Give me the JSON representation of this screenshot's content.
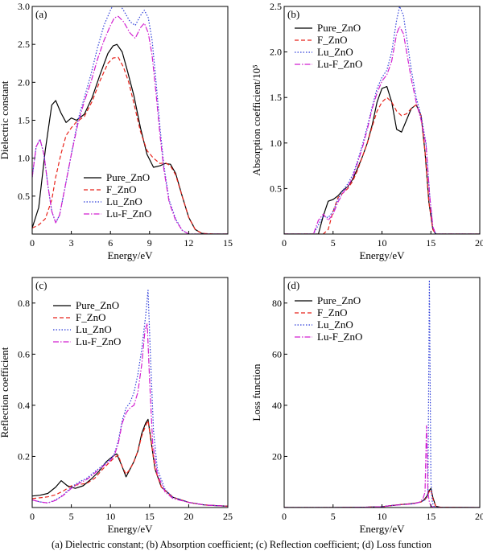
{
  "caption": "(a) Dielectric constant; (b) Absorption coefficient; (c) Reflection coefficient; (d) Loss function",
  "styles": {
    "Pure_ZnO": {
      "color": "#000000",
      "dash": ""
    },
    "F_ZnO": {
      "color": "#e8231b",
      "dash": "5,3"
    },
    "Lu_ZnO": {
      "color": "#2f3fd9",
      "dash": "1.5,2"
    },
    "Lu-F_ZnO": {
      "color": "#d21fd0",
      "dash": "7,2,1.5,2"
    }
  },
  "chart_data": [
    {
      "type": "line",
      "panel_label": "(a)",
      "xlabel": "Energy/eV",
      "ylabel": "Dielectric constant",
      "xlim": [
        0,
        15
      ],
      "ylim": [
        0,
        3.0
      ],
      "xticks": [
        0,
        3,
        6,
        9,
        12,
        15
      ],
      "yticks": [
        0.5,
        1.0,
        1.5,
        2.0,
        2.5,
        3.0
      ],
      "ytick_labels": [
        "0.5",
        "1.0",
        "1.5",
        "2.0",
        "2.5",
        "3.0"
      ],
      "legend": "lower-left",
      "series": [
        {
          "name": "Pure_ZnO",
          "x": [
            0,
            0.5,
            1.0,
            1.5,
            1.8,
            2.2,
            2.6,
            3.0,
            3.4,
            4.0,
            4.6,
            5.2,
            5.8,
            6.2,
            6.5,
            6.9,
            7.3,
            7.8,
            8.3,
            8.8,
            9.3,
            9.8,
            10.2,
            10.6,
            11.0,
            11.5,
            12.0,
            12.5,
            13.0,
            13.5,
            14.0,
            15.0
          ],
          "y": [
            0.08,
            0.35,
            1.1,
            1.7,
            1.76,
            1.6,
            1.47,
            1.53,
            1.5,
            1.58,
            1.8,
            2.1,
            2.38,
            2.48,
            2.5,
            2.4,
            2.15,
            1.82,
            1.4,
            1.05,
            0.88,
            0.9,
            0.93,
            0.92,
            0.8,
            0.5,
            0.22,
            0.06,
            0.01,
            0.0,
            0.0,
            0.0
          ]
        },
        {
          "name": "F_ZnO",
          "x": [
            0,
            0.5,
            1.0,
            1.5,
            1.8,
            2.2,
            2.6,
            3.0,
            3.4,
            4.0,
            4.6,
            5.2,
            5.8,
            6.2,
            6.6,
            7.0,
            7.4,
            7.8,
            8.3,
            8.8,
            9.3,
            9.8,
            10.2,
            10.6,
            11.0,
            11.5,
            12.0,
            12.5,
            13.0,
            14.0,
            15.0
          ],
          "y": [
            0.08,
            0.12,
            0.2,
            0.45,
            0.75,
            1.05,
            1.3,
            1.4,
            1.48,
            1.55,
            1.75,
            2.02,
            2.25,
            2.32,
            2.33,
            2.2,
            2.0,
            1.72,
            1.35,
            1.1,
            1.0,
            0.93,
            0.94,
            0.9,
            0.78,
            0.5,
            0.22,
            0.06,
            0.01,
            0.0,
            0.0
          ]
        },
        {
          "name": "Lu_ZnO",
          "x": [
            0,
            0.3,
            0.6,
            0.9,
            1.2,
            1.5,
            1.8,
            2.1,
            2.5,
            3.0,
            3.5,
            4.0,
            4.5,
            5.0,
            5.5,
            6.0,
            6.3,
            6.6,
            7.0,
            7.5,
            7.9,
            8.3,
            8.6,
            8.9,
            9.2,
            9.5,
            9.8,
            10.1,
            10.5,
            11.0,
            11.5,
            12.0,
            15.0
          ],
          "y": [
            0.75,
            1.15,
            1.25,
            1.05,
            0.65,
            0.3,
            0.15,
            0.25,
            0.6,
            1.05,
            1.5,
            1.8,
            2.1,
            2.45,
            2.75,
            2.95,
            3.05,
            3.05,
            2.95,
            2.8,
            2.75,
            2.88,
            2.95,
            2.85,
            2.55,
            2.0,
            1.4,
            0.9,
            0.45,
            0.2,
            0.05,
            0.0,
            0.0
          ]
        },
        {
          "name": "Lu-F_ZnO",
          "x": [
            0,
            0.3,
            0.6,
            0.9,
            1.2,
            1.5,
            1.8,
            2.1,
            2.5,
            3.0,
            3.5,
            4.0,
            4.5,
            5.0,
            5.5,
            6.0,
            6.3,
            6.6,
            7.0,
            7.5,
            7.9,
            8.3,
            8.6,
            8.9,
            9.2,
            9.5,
            9.8,
            10.1,
            10.5,
            11.0,
            11.5,
            12.0,
            15.0
          ],
          "y": [
            0.75,
            1.15,
            1.25,
            1.05,
            0.65,
            0.3,
            0.15,
            0.25,
            0.6,
            1.05,
            1.45,
            1.75,
            2.0,
            2.3,
            2.55,
            2.75,
            2.85,
            2.87,
            2.8,
            2.65,
            2.58,
            2.72,
            2.78,
            2.65,
            2.35,
            1.85,
            1.3,
            0.85,
            0.42,
            0.18,
            0.05,
            0.0,
            0.0
          ]
        }
      ]
    },
    {
      "type": "line",
      "panel_label": "(b)",
      "xlabel": "Energy/eV",
      "ylabel": "Absorption coefficient/10⁵",
      "xlim": [
        0,
        20
      ],
      "ylim": [
        0,
        2.5
      ],
      "xticks": [
        0,
        5,
        10,
        15,
        20
      ],
      "yticks": [
        0.5,
        1.0,
        1.5,
        2.0,
        2.5
      ],
      "ytick_labels": [
        "0.5",
        "1.0",
        "1.5",
        "2.0",
        "2.5"
      ],
      "legend": "top-left",
      "series": [
        {
          "name": "Pure_ZnO",
          "x": [
            0,
            3.5,
            4.0,
            4.5,
            5.0,
            5.5,
            6.0,
            6.5,
            7.0,
            7.5,
            8.0,
            8.5,
            9.0,
            9.5,
            10.0,
            10.5,
            11.0,
            11.5,
            12.0,
            12.5,
            13.0,
            13.5,
            14.0,
            14.4,
            14.8,
            15.2,
            15.5,
            20
          ],
          "y": [
            0,
            0,
            0.2,
            0.36,
            0.38,
            0.42,
            0.48,
            0.52,
            0.6,
            0.72,
            0.85,
            1.0,
            1.2,
            1.45,
            1.6,
            1.62,
            1.45,
            1.15,
            1.12,
            1.25,
            1.38,
            1.42,
            1.3,
            0.9,
            0.35,
            0.05,
            0,
            0
          ]
        },
        {
          "name": "F_ZnO",
          "x": [
            0,
            4.0,
            4.5,
            5.0,
            5.5,
            6.0,
            6.5,
            7.0,
            7.5,
            8.0,
            8.5,
            9.0,
            9.5,
            10.0,
            10.5,
            11.0,
            11.5,
            12.0,
            12.5,
            13.0,
            13.5,
            14.0,
            14.4,
            14.8,
            15.2,
            15.5,
            20
          ],
          "y": [
            0,
            0,
            0.05,
            0.25,
            0.4,
            0.45,
            0.5,
            0.58,
            0.7,
            0.85,
            1.0,
            1.18,
            1.35,
            1.45,
            1.5,
            1.45,
            1.35,
            1.3,
            1.32,
            1.38,
            1.42,
            1.3,
            0.9,
            0.35,
            0.05,
            0,
            0
          ]
        },
        {
          "name": "Lu_ZnO",
          "x": [
            0,
            3.0,
            3.5,
            4.0,
            4.5,
            5.0,
            5.5,
            6.0,
            6.5,
            7.0,
            7.5,
            8.0,
            8.5,
            9.0,
            9.5,
            10.0,
            10.5,
            11.0,
            11.5,
            11.8,
            12.2,
            12.6,
            13.0,
            13.5,
            14.0,
            14.5,
            14.9,
            15.2,
            15.5,
            20
          ],
          "y": [
            0,
            0,
            0.1,
            0.2,
            0.18,
            0.25,
            0.38,
            0.48,
            0.55,
            0.65,
            0.8,
            0.98,
            1.18,
            1.4,
            1.6,
            1.72,
            1.8,
            2.0,
            2.35,
            2.5,
            2.4,
            2.1,
            1.8,
            1.5,
            1.3,
            1.0,
            0.4,
            0.08,
            0,
            0
          ]
        },
        {
          "name": "Lu-F_ZnO",
          "x": [
            0,
            3.0,
            3.5,
            4.0,
            4.5,
            5.0,
            5.5,
            6.0,
            6.5,
            7.0,
            7.5,
            8.0,
            8.5,
            9.0,
            9.5,
            10.0,
            10.5,
            11.0,
            11.5,
            11.8,
            12.2,
            12.6,
            13.0,
            13.5,
            14.0,
            14.5,
            14.9,
            15.2,
            15.5,
            20
          ],
          "y": [
            0,
            0,
            0.15,
            0.22,
            0.15,
            0.22,
            0.35,
            0.45,
            0.52,
            0.62,
            0.78,
            0.95,
            1.15,
            1.38,
            1.55,
            1.68,
            1.75,
            1.9,
            2.2,
            2.28,
            2.2,
            1.95,
            1.7,
            1.45,
            1.25,
            0.98,
            0.4,
            0.08,
            0,
            0
          ]
        }
      ]
    },
    {
      "type": "line",
      "panel_label": "(c)",
      "xlabel": "Energy/eV",
      "ylabel": "Reflection coefficient",
      "xlim": [
        0,
        25
      ],
      "ylim": [
        0,
        0.9
      ],
      "xticks": [
        0,
        5,
        10,
        15,
        20,
        25
      ],
      "yticks": [
        0.2,
        0.4,
        0.6,
        0.8
      ],
      "ytick_labels": [
        "0.2",
        "0.4",
        "0.6",
        "0.8"
      ],
      "legend": "top-left",
      "series": [
        {
          "name": "Pure_ZnO",
          "x": [
            0,
            1,
            2,
            3,
            3.7,
            4.5,
            5.5,
            6.5,
            7.5,
            8.5,
            9.5,
            10.3,
            10.8,
            11.5,
            12.0,
            12.5,
            13.0,
            13.5,
            14.0,
            14.5,
            14.8,
            15.2,
            15.7,
            16.5,
            18,
            20,
            22,
            25
          ],
          "y": [
            0.045,
            0.048,
            0.055,
            0.08,
            0.105,
            0.085,
            0.075,
            0.085,
            0.11,
            0.14,
            0.18,
            0.2,
            0.21,
            0.16,
            0.12,
            0.15,
            0.18,
            0.22,
            0.29,
            0.33,
            0.345,
            0.26,
            0.15,
            0.08,
            0.04,
            0.02,
            0.01,
            0.005
          ]
        },
        {
          "name": "F_ZnO",
          "x": [
            0,
            1,
            2,
            3,
            4,
            5,
            6,
            7,
            8,
            9,
            10,
            10.5,
            11.0,
            11.5,
            12.0,
            12.5,
            13.0,
            13.5,
            14.0,
            14.5,
            14.8,
            15.2,
            15.7,
            16.5,
            18,
            20,
            22,
            25
          ],
          "y": [
            0.035,
            0.038,
            0.042,
            0.05,
            0.065,
            0.085,
            0.09,
            0.095,
            0.115,
            0.15,
            0.18,
            0.195,
            0.205,
            0.16,
            0.13,
            0.15,
            0.18,
            0.22,
            0.28,
            0.32,
            0.34,
            0.26,
            0.15,
            0.08,
            0.04,
            0.02,
            0.01,
            0.005
          ]
        },
        {
          "name": "Lu_ZnO",
          "x": [
            0,
            1,
            2,
            3,
            4,
            5,
            6,
            7,
            8,
            9,
            10,
            10.5,
            11.0,
            11.5,
            12.0,
            12.5,
            13.0,
            13.5,
            14.0,
            14.5,
            14.8,
            15.1,
            15.5,
            16.0,
            17,
            18,
            20,
            22,
            25
          ],
          "y": [
            0.03,
            0.022,
            0.018,
            0.03,
            0.05,
            0.08,
            0.1,
            0.115,
            0.14,
            0.165,
            0.19,
            0.21,
            0.26,
            0.34,
            0.39,
            0.41,
            0.45,
            0.52,
            0.62,
            0.75,
            0.85,
            0.6,
            0.3,
            0.15,
            0.07,
            0.04,
            0.02,
            0.01,
            0.005
          ]
        },
        {
          "name": "Lu-F_ZnO",
          "x": [
            0,
            1,
            2,
            3,
            4,
            5,
            6,
            7,
            8,
            9,
            10,
            10.5,
            11.0,
            11.5,
            12.0,
            12.5,
            13.0,
            13.5,
            14.0,
            14.4,
            14.7,
            15.0,
            15.4,
            16.0,
            17,
            18,
            20,
            22,
            25
          ],
          "y": [
            0.03,
            0.022,
            0.018,
            0.028,
            0.048,
            0.075,
            0.095,
            0.11,
            0.135,
            0.16,
            0.185,
            0.205,
            0.25,
            0.33,
            0.37,
            0.39,
            0.4,
            0.45,
            0.56,
            0.69,
            0.72,
            0.5,
            0.25,
            0.13,
            0.06,
            0.035,
            0.02,
            0.01,
            0.005
          ]
        }
      ]
    },
    {
      "type": "line",
      "panel_label": "(d)",
      "xlabel": "Energy/eV",
      "ylabel": "Loss function",
      "xlim": [
        0,
        20
      ],
      "ylim": [
        0,
        90
      ],
      "xticks": [
        0,
        5,
        10,
        15,
        20
      ],
      "yticks": [
        20,
        40,
        60,
        80
      ],
      "ytick_labels": [
        "20",
        "40",
        "60",
        "80"
      ],
      "legend": "top-left",
      "series": [
        {
          "name": "Pure_ZnO",
          "x": [
            0,
            5,
            8,
            10,
            11,
            12,
            13,
            13.5,
            14.0,
            14.3,
            14.6,
            14.8,
            15.0,
            15.2,
            15.5,
            16,
            20
          ],
          "y": [
            0,
            0,
            0.1,
            0.3,
            0.8,
            1.2,
            1.5,
            1.8,
            2.2,
            3.0,
            4.5,
            6.5,
            7.5,
            4.0,
            0.5,
            0.1,
            0
          ]
        },
        {
          "name": "F_ZnO",
          "x": [
            0,
            5,
            8,
            10,
            11,
            12,
            13,
            13.5,
            14.0,
            14.3,
            14.6,
            14.8,
            15.0,
            15.2,
            15.5,
            16,
            20
          ],
          "y": [
            0,
            0,
            0.1,
            0.3,
            0.8,
            1.2,
            1.5,
            1.8,
            2.2,
            2.8,
            4.0,
            6.0,
            7.0,
            3.5,
            0.5,
            0.1,
            0
          ]
        },
        {
          "name": "Lu_ZnO",
          "x": [
            0,
            5,
            8,
            10,
            11,
            12,
            13,
            13.5,
            14.0,
            14.4,
            14.7,
            14.85,
            15.0,
            15.15,
            15.3,
            15.6,
            16,
            20
          ],
          "y": [
            0,
            0,
            0.1,
            0.3,
            0.8,
            1.1,
            1.4,
            1.7,
            2.2,
            3.0,
            5.0,
            89,
            10,
            2.0,
            0.5,
            0.1,
            0,
            0
          ]
        },
        {
          "name": "Lu-F_ZnO",
          "x": [
            0,
            5,
            8,
            10,
            11,
            12,
            13,
            13.5,
            13.9,
            14.2,
            14.4,
            14.55,
            14.7,
            14.85,
            15.0,
            15.3,
            16,
            20
          ],
          "y": [
            0,
            0,
            0.1,
            0.3,
            0.8,
            1.1,
            1.4,
            1.7,
            2.2,
            3.5,
            6.0,
            32,
            6.0,
            2.0,
            0.6,
            0.1,
            0,
            0
          ]
        }
      ]
    }
  ]
}
